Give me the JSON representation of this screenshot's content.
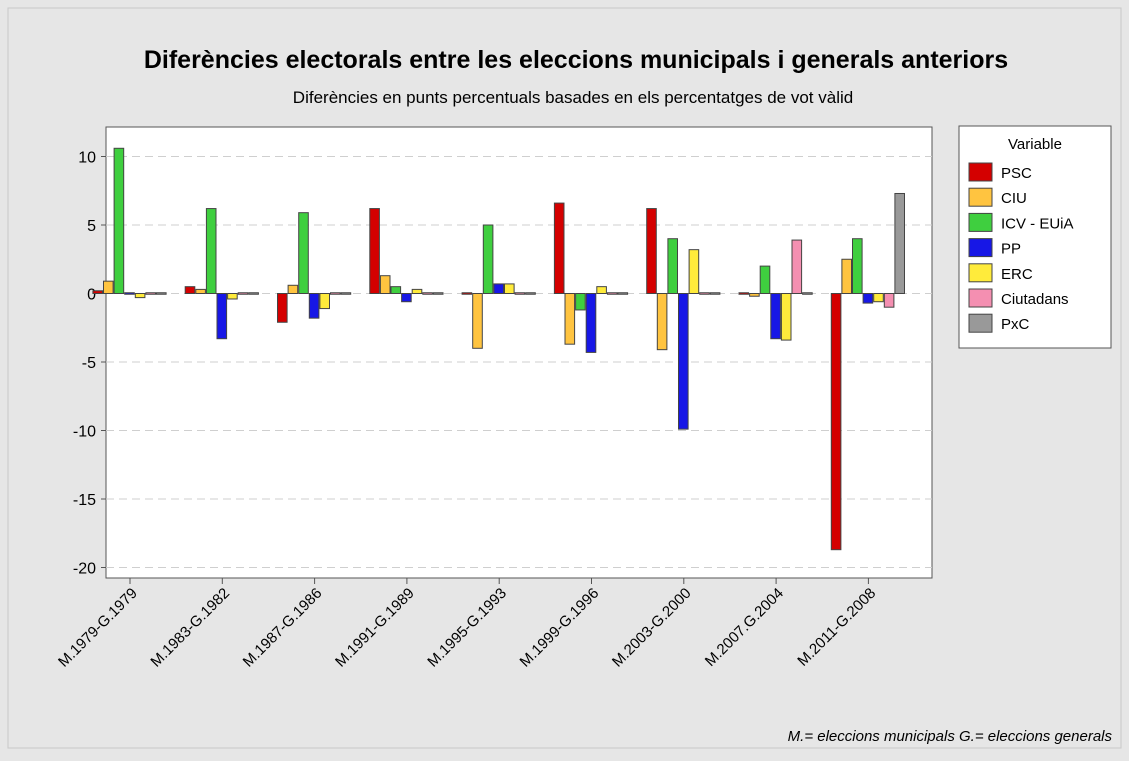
{
  "chart_data": {
    "type": "bar",
    "title": "Diferències electorals entre les eleccions municipals i generals anteriors",
    "subtitle": "Diferències en punts percentuals basades en els percentatges de vot vàlid",
    "xlabel": "",
    "ylabel": "",
    "ylim": [
      -20.5,
      12.3
    ],
    "yticks": [
      10,
      5,
      0,
      -5,
      -10,
      -15,
      -20
    ],
    "grid": true,
    "legend_title": "Variable",
    "legend_position": "right",
    "footnote": "M.= eleccions municipals G.= eleccions generals",
    "categories": [
      "M.1979-G.1979",
      "M.1983-G.1982",
      "M.1987-G.1986",
      "M.1991-G.1989",
      "M.1995-G.1993",
      "M.1999-G.1996",
      "M.2003-G.2000",
      "M.2007.G.2004",
      "M.2011-G.2008"
    ],
    "series": [
      {
        "name": "PSC",
        "color": "#d40000",
        "values": [
          0.2,
          0.5,
          -2.1,
          6.2,
          0,
          6.6,
          6.2,
          -0.1,
          -18.7
        ]
      },
      {
        "name": "CIU",
        "color": "#ffc440",
        "values": [
          0.9,
          0.3,
          0.6,
          1.3,
          -4.0,
          -3.7,
          -4.1,
          -0.2,
          2.5
        ]
      },
      {
        "name": "ICV - EUiA",
        "color": "#3fcf3f",
        "values": [
          10.6,
          6.2,
          5.9,
          0.5,
          5.0,
          -1.2,
          4.0,
          2.0,
          4.0
        ]
      },
      {
        "name": "PP",
        "color": "#1717e6",
        "values": [
          0,
          -3.3,
          -1.8,
          -0.6,
          0.7,
          -4.3,
          -9.9,
          -3.3,
          -0.7
        ]
      },
      {
        "name": "ERC",
        "color": "#ffeb3b",
        "values": [
          -0.3,
          -0.4,
          -1.1,
          0.3,
          0.7,
          0.5,
          3.2,
          -3.4,
          -0.6
        ]
      },
      {
        "name": "Ciutadans",
        "color": "#f48fb1",
        "values": [
          0,
          0,
          0,
          0,
          0,
          0,
          0,
          3.9,
          -1.0
        ]
      },
      {
        "name": "PxC",
        "color": "#999999",
        "values": [
          0,
          0,
          0,
          0,
          0,
          0,
          0,
          0,
          7.3
        ]
      }
    ]
  }
}
